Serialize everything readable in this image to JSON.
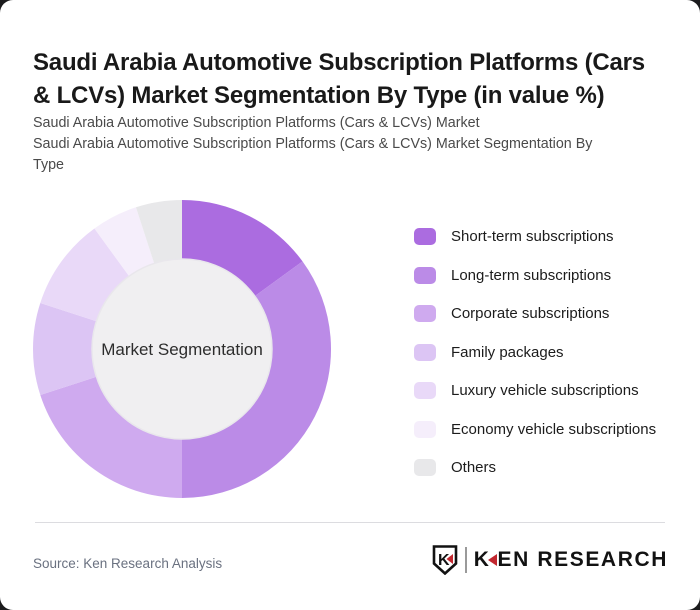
{
  "header": {
    "title": "Saudi Arabia Automotive Subscription Platforms (Cars & LCVs) Market Segmentation By Type (in value %)",
    "title_lines": [
      "Saudi Arabia Automotive Subscription Platforms (Cars",
      "& LCVs) Market Segmentation By Type (in value %)"
    ],
    "subtitle_line1": "Saudi Arabia Automotive Subscription Platforms (Cars & LCVs) Market",
    "subtitle_line2_lines": [
      "Saudi Arabia Automotive Subscription Platforms (Cars & LCVs) Market Segmentation By",
      "Type"
    ]
  },
  "chart_data": {
    "type": "pie",
    "donut": true,
    "start_angle_deg": 0,
    "direction": "clockwise",
    "center_label": "Market Segmentation",
    "values_unit": "%",
    "legend_position": "right",
    "center_fill": "#f0eff1",
    "segments": [
      {
        "label": "Short-term subscriptions",
        "value": 15,
        "color": "#ab6ce0"
      },
      {
        "label": "Long-term subscriptions",
        "value": 35,
        "color": "#bb8be7"
      },
      {
        "label": "Corporate subscriptions",
        "value": 20,
        "color": "#cfaaef"
      },
      {
        "label": "Family packages",
        "value": 10,
        "color": "#dcc5f4"
      },
      {
        "label": "Luxury vehicle subscriptions",
        "value": 10,
        "color": "#e9d9f8"
      },
      {
        "label": "Economy vehicle subscriptions",
        "value": 5,
        "color": "#f5eefb"
      },
      {
        "label": "Others",
        "value": 5,
        "color": "#e8e8ea"
      }
    ]
  },
  "footer": {
    "source": "Source: Ken Research Analysis",
    "logo_k": "K",
    "logo_rest": "EN RESEARCH",
    "logo_shield_letter": "K",
    "logo_accent_color": "#c2272f",
    "logo_text_color": "#121212"
  }
}
